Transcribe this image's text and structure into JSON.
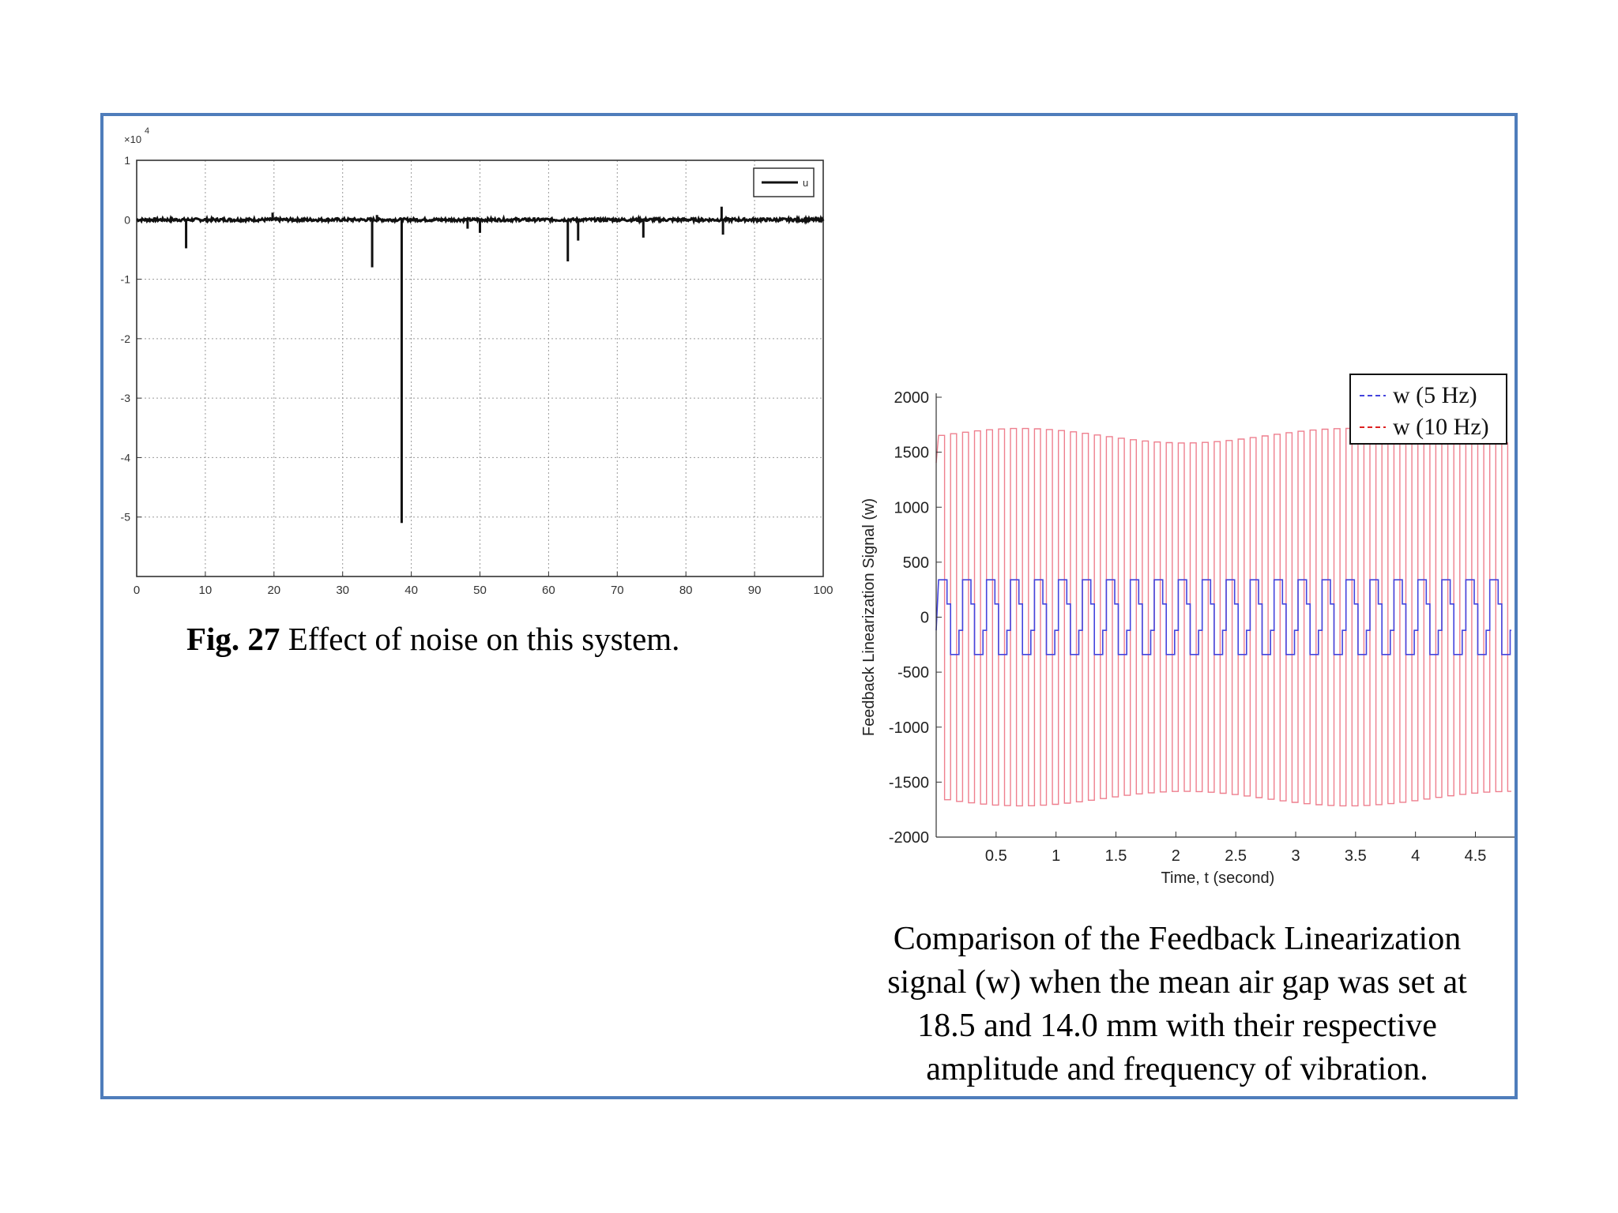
{
  "figure1": {
    "caption_label": "Fig. 27",
    "caption_text": " Effect of noise on this system.",
    "chart_data": {
      "type": "line",
      "title": "",
      "xlabel": "",
      "ylabel": "",
      "exponent_label": "×10",
      "exponent_power": "4",
      "xlim": [
        0,
        100
      ],
      "ylim": [
        -6,
        1
      ],
      "x_ticks": [
        0,
        10,
        20,
        30,
        40,
        50,
        60,
        70,
        80,
        90,
        100
      ],
      "y_ticks": [
        1,
        0,
        -1,
        -2,
        -3,
        -4,
        -5
      ],
      "grid": true,
      "legend": "top-right",
      "series": [
        {
          "name": "u",
          "color": "#111111",
          "baseline": 0,
          "spikes": [
            {
              "x": 7.2,
              "y": -0.48
            },
            {
              "x": 19.8,
              "y": 0.12
            },
            {
              "x": 34.3,
              "y": -0.8
            },
            {
              "x": 35.0,
              "y": 0.08
            },
            {
              "x": 38.6,
              "y": -5.1
            },
            {
              "x": 48.2,
              "y": -0.15
            },
            {
              "x": 50.0,
              "y": -0.22
            },
            {
              "x": 62.8,
              "y": -0.7
            },
            {
              "x": 64.3,
              "y": -0.35
            },
            {
              "x": 73.8,
              "y": -0.3
            },
            {
              "x": 85.2,
              "y": 0.22
            },
            {
              "x": 85.4,
              "y": -0.25
            }
          ]
        }
      ]
    }
  },
  "figure2": {
    "caption_text": "Comparison of the Feedback Linearization signal (w) when the mean air gap was set at 18.5 and 14.0 mm with their respective amplitude and frequency of vibration.",
    "chart_data": {
      "type": "line",
      "title": "",
      "xlabel": "Time, t (second)",
      "ylabel": "Feedback Linearization Signal (w)",
      "xlim": [
        0,
        4.8
      ],
      "ylim": [
        -2000,
        2000
      ],
      "x_ticks": [
        0.5,
        1,
        1.5,
        2,
        2.5,
        3,
        3.5,
        4,
        4.5
      ],
      "x_tick_labels": [
        "0.5",
        "1",
        "1.5",
        "2",
        "2.5",
        "3",
        "3.5",
        "4",
        "4.5"
      ],
      "y_ticks": [
        2000,
        1500,
        1000,
        500,
        0,
        -500,
        -1000,
        -1500,
        -2000
      ],
      "y_tick_labels": [
        "2000",
        "1500",
        "1000",
        "500",
        "0",
        "-500",
        "-1000",
        "-1500",
        "-2000"
      ],
      "grid": false,
      "legend": "top-right",
      "series": [
        {
          "name": "w (5 Hz)",
          "color": "#4444dd",
          "shape": "stepped square wave",
          "frequency_hz": 5,
          "amplitude": 340,
          "mid_level": 120
        },
        {
          "name": "w (10 Hz)",
          "color": "#ee7f8e",
          "shape": "square wave",
          "frequency_hz": 10,
          "amplitude": 1650
        }
      ]
    }
  }
}
